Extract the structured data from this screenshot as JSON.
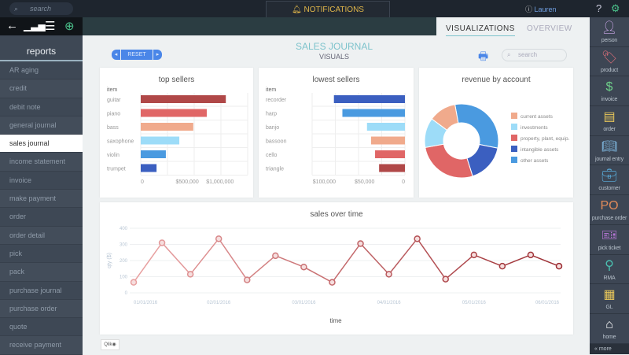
{
  "topbar": {
    "search_placeholder": "search",
    "notifications": "NOTIFICATIONS",
    "user": "Lauren",
    "help_icon": "question-circle-icon",
    "settings_icon": "gear-icon"
  },
  "toolbar": {
    "icons": [
      "back-arrow-icon",
      "bar-chart-icon",
      "list-icon",
      "add-circle-icon"
    ]
  },
  "tabs": {
    "visualizations": "VISUALIZATIONS",
    "overview": "OVERVIEW",
    "active": "VISUALIZATIONS"
  },
  "sidebar": {
    "heading": "reports",
    "selected": "sales journal",
    "items": [
      "AR aging",
      "credit",
      "debit note",
      "general journal",
      "sales journal",
      "income statement",
      "invoice",
      "make payment",
      "order",
      "order detail",
      "pick",
      "pack",
      "purchase journal",
      "purchase order",
      "quote",
      "receive payment"
    ]
  },
  "right_nav": {
    "items": [
      {
        "label": "person",
        "color": "#c9a6e6"
      },
      {
        "label": "product",
        "color": "#e0707a"
      },
      {
        "label": "invoice",
        "color": "#6fd08a"
      },
      {
        "label": "order",
        "color": "#e6c55a"
      },
      {
        "label": "journal entry",
        "color": "#7fb8e0"
      },
      {
        "label": "customer",
        "color": "#5ab0e0"
      },
      {
        "label": "purchase order",
        "color": "#e08a5a"
      },
      {
        "label": "pick ticket",
        "color": "#c07ae0"
      },
      {
        "label": "RMA",
        "color": "#4ac0b0"
      },
      {
        "label": "GL",
        "color": "#e6c55a"
      },
      {
        "label": "home",
        "color": "#ffffff"
      }
    ],
    "more": "more"
  },
  "main": {
    "title": "SALES JOURNAL",
    "subtitle": "VISUALS",
    "reset": "RESET",
    "search_placeholder": "search",
    "logo": "Qlik"
  },
  "chart_data": [
    {
      "type": "bar",
      "orientation": "horizontal",
      "title": "top sellers",
      "category_header": "item",
      "categories": [
        "guitar",
        "piano",
        "bass",
        "saxophone",
        "violin",
        "trumpet"
      ],
      "values": [
        915000,
        710000,
        565000,
        415000,
        270000,
        170000
      ],
      "colors": [
        "#b04848",
        "#e06666",
        "#f0aa8c",
        "#9ddcf8",
        "#4a9ae0",
        "#3b5fc0"
      ],
      "xticks": [
        "0",
        "$500,000",
        "$1,000,000"
      ],
      "xlim": [
        0,
        1150000
      ]
    },
    {
      "type": "bar",
      "orientation": "horizontal",
      "reversed": true,
      "title": "lowest sellers",
      "category_header": "item",
      "categories": [
        "recorder",
        "harp",
        "banjo",
        "bassoon",
        "cello",
        "triangle"
      ],
      "values": [
        88000,
        77500,
        47000,
        42000,
        37000,
        32000
      ],
      "colors": [
        "#3b5fc0",
        "#4a9ae0",
        "#9ddcf8",
        "#f0aa8c",
        "#e06666",
        "#b04848"
      ],
      "xticks": [
        "$100,000",
        "$50,000",
        "0"
      ],
      "xlim": [
        0,
        115000
      ]
    },
    {
      "type": "pie",
      "donut": true,
      "title": "revenue by account",
      "legend": "right",
      "labels": [
        "other assets",
        "intangible assets",
        "property, plant, equip.",
        "investments",
        "current assets"
      ],
      "values": [
        31,
        17,
        27,
        13,
        12
      ],
      "colors": [
        "#4a9ae0",
        "#3b5fc0",
        "#e06666",
        "#9ddcf8",
        "#f0aa8c"
      ]
    },
    {
      "type": "line",
      "title": "sales over time",
      "xlabel": "time",
      "ylabel": "qty ($)",
      "ylim": [
        0,
        400
      ],
      "yticks": [
        0,
        100,
        200,
        300,
        400
      ],
      "xticks": [
        "01/01/2016",
        "02/01/2016",
        "03/01/2016",
        "04/01/2016",
        "05/01/2016",
        "06/01/2016"
      ],
      "values": [
        65,
        310,
        115,
        335,
        80,
        230,
        160,
        65,
        305,
        115,
        335,
        85,
        235,
        165,
        235,
        165
      ],
      "color_start": "#e8a0a0",
      "color_end": "#9a2a30"
    }
  ]
}
